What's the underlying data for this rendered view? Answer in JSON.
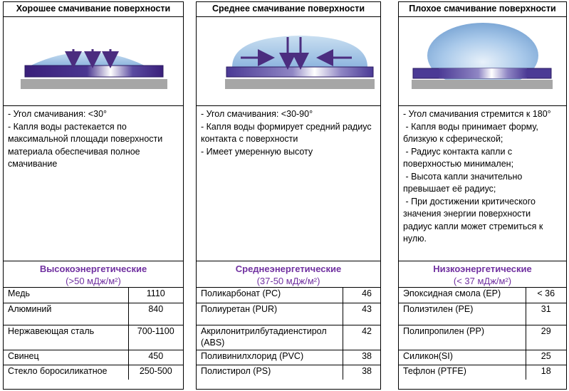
{
  "panels": [
    {
      "title": "Хорошее смачивание поверхности",
      "desc": [
        "- Угол смачивания: <30°",
        "- Капля воды растекается по максимальной площади поверхности материала обеспечивая полное смачивание"
      ],
      "category": "Высокоэнергетические",
      "range": "(>50 мДж/м²)",
      "rows": [
        {
          "name": "Медь",
          "value": "1110"
        },
        {
          "name": "Алюминий",
          "value": "840"
        },
        {
          "name": "Нержавеющая сталь",
          "value": "700-1100"
        },
        {
          "name": "Свинец",
          "value": "450"
        },
        {
          "name": "Стекло боросиликатное",
          "value": "250-500"
        }
      ]
    },
    {
      "title": "Среднее смачивание поверхности",
      "desc": [
        "- Угол смачивания: <30-90°",
        "- Капля воды формирует средний радиус контакта с поверхности",
        "- Имеет умеренную высоту"
      ],
      "category": "Среднеэнергетические",
      "range": "(37-50 мДж/м²)",
      "rows": [
        {
          "name": "Поликарбонат  (PC)",
          "value": "46"
        },
        {
          "name": "Полиуретан (PUR)",
          "value": "43"
        },
        {
          "name": "Акрилонитрилбутадиенстирол (ABS)",
          "value": "42"
        },
        {
          "name": "Поливинилхлорид (PVC)",
          "value": "38"
        },
        {
          "name": "Полистирол (PS)",
          "value": "38"
        }
      ]
    },
    {
      "title": "Плохое смачивание поверхности",
      "desc": [
        "- Угол смачивания стремится к 180°",
        " - Капля воды принимает форму, близкую к сферической;",
        " - Радиус контакта капли с поверхностью минимален;",
        " - Высота капли значительно превышает её радиус;",
        " - При достижении критического значения энергии поверхности радиус капли может стремиться к нулю."
      ],
      "category": "Низкоэнергетические",
      "range": "(< 37 мДж/м²)",
      "rows": [
        {
          "name": "Эпоксидная смола (EP)",
          "value": "< 36"
        },
        {
          "name": "Полиэтилен (PE)",
          "value": "31"
        },
        {
          "name": "Полипропилен (PP)",
          "value": "29"
        },
        {
          "name": "Силикон(SI)",
          "value": "25"
        },
        {
          "name": "Тефлон (PTFE)",
          "value": "18"
        }
      ]
    }
  ],
  "colors": {
    "accent": "#7030a0",
    "plate": "#3b2a8c",
    "base": "#a6a6a6",
    "droplet": "#9cc3e6",
    "arrow": "#4b2d7f"
  }
}
